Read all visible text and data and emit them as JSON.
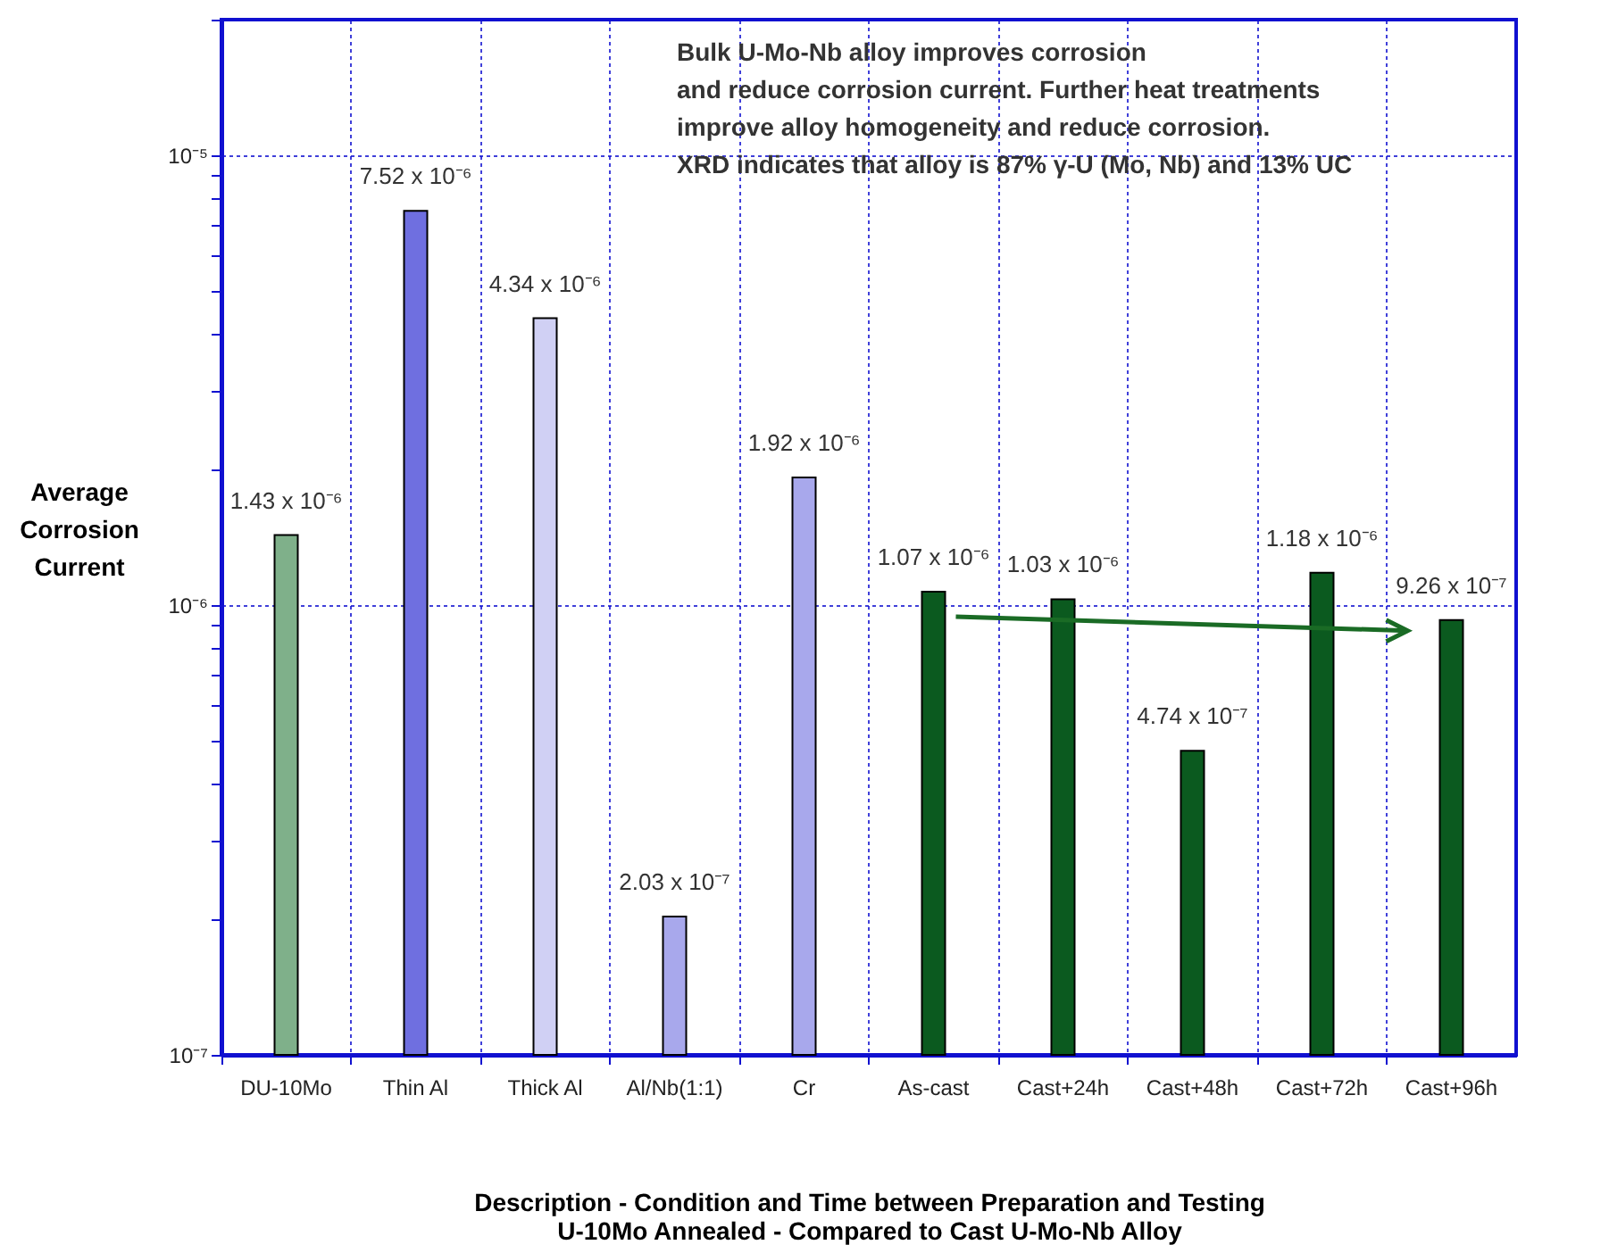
{
  "chart_data": {
    "type": "bar",
    "xlabel": "Description - Condition and Time between Preparation and Testing\nU-10Mo Annealed - Compared to Cast U-Mo-Nb Alloy",
    "ylabel": "Average\nCorrosion\nCurrent",
    "categories": [
      "DU-10Mo",
      "Thin Al",
      "Thick Al",
      "Al/Nb(1:1)",
      "Cr",
      "As-cast",
      "Cast+24h",
      "Cast+48h",
      "Cast+72h",
      "Cast+96h"
    ],
    "values": [
      1.43e-06,
      7.52e-06,
      4.34e-06,
      2.03e-07,
      1.92e-06,
      1.07e-06,
      1.03e-06,
      4.74e-07,
      1.18e-06,
      9.26e-07
    ],
    "value_labels": [
      "1.43 x 10⁻⁶",
      "7.52 x 10⁻⁶",
      "4.34 x 10⁻⁶",
      "2.03 x 10⁻⁷",
      "1.92 x 10⁻⁶",
      "1.07 x 10⁻⁶",
      "1.03 x 10⁻⁶",
      "4.74 x 10⁻⁷",
      "1.18 x 10⁻⁶",
      "9.26 x 10⁻⁷"
    ],
    "colors": [
      "#7fb08a",
      "#6f6fe0",
      "#d0d0f4",
      "#a8a8ec",
      "#a8a8ec",
      "#0b5a1f",
      "#0b5a1f",
      "#0b5a1f",
      "#0b5a1f",
      "#0b5a1f"
    ],
    "log": true,
    "ylim": [
      1e-07,
      2e-05
    ],
    "yticks": [
      {
        "value": 1e-07,
        "label": "10⁻⁷"
      },
      {
        "value": 2e-07,
        "label": null
      },
      {
        "value": 3e-07,
        "label": null
      },
      {
        "value": 4e-07,
        "label": null
      },
      {
        "value": 5e-07,
        "label": null
      },
      {
        "value": 6e-07,
        "label": null
      },
      {
        "value": 7e-07,
        "label": null
      },
      {
        "value": 8e-07,
        "label": null
      },
      {
        "value": 9e-07,
        "label": null
      },
      {
        "value": 1e-06,
        "label": "10⁻⁶"
      },
      {
        "value": 2e-06,
        "label": null
      },
      {
        "value": 3e-06,
        "label": null
      },
      {
        "value": 4e-06,
        "label": null
      },
      {
        "value": 5e-06,
        "label": null
      },
      {
        "value": 6e-06,
        "label": null
      },
      {
        "value": 7e-06,
        "label": null
      },
      {
        "value": 8e-06,
        "label": null
      },
      {
        "value": 9e-06,
        "label": null
      },
      {
        "value": 1e-05,
        "label": "10⁻⁵"
      },
      {
        "value": 2e-05,
        "label": null
      }
    ],
    "grid": true,
    "annotations": [
      "Bulk U-Mo-Nb alloy  improves corrosion",
      "and reduce corrosion current. Further heat treatments",
      "improve alloy homogeneity and reduce corrosion.",
      "XRD indicates that alloy is 87% γ-U (Mo, Nb) and 13% UC"
    ]
  }
}
